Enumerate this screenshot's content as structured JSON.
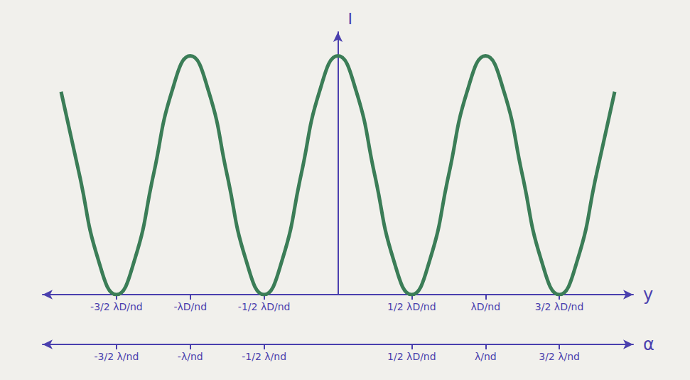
{
  "chart_data": {
    "type": "line",
    "xlabel": "y",
    "x2label": "α",
    "ylabel": "I",
    "x": [
      -1.875,
      -1.75,
      -1.625,
      -1.5,
      -1.375,
      -1.25,
      -1.125,
      -1,
      -0.875,
      -0.75,
      -0.625,
      -0.5,
      -0.375,
      -0.25,
      -0.125,
      0,
      0.125,
      0.25,
      0.375,
      0.5,
      0.625,
      0.75,
      0.875,
      1,
      1.125,
      1.25,
      1.375,
      1.5,
      1.625,
      1.75,
      1.875
    ],
    "values": [
      0.85,
      0.5,
      0.15,
      0,
      0.15,
      0.5,
      0.85,
      1,
      0.85,
      0.5,
      0.15,
      0,
      0.15,
      0.5,
      0.85,
      1,
      0.85,
      0.5,
      0.15,
      0,
      0.15,
      0.5,
      0.85,
      1,
      0.85,
      0.5,
      0.15,
      0,
      0.15,
      0.5,
      0.85
    ],
    "color": "#3b7d57",
    "xlim": [
      -2,
      2
    ],
    "xticks": [
      {
        "value": -1.5,
        "label": "-3/2 λD/nd"
      },
      {
        "value": -1,
        "label": "-λD/nd"
      },
      {
        "value": -0.5,
        "label": "-1/2 λD/nd"
      },
      {
        "value": 0.5,
        "label": "1/2 λD/nd"
      },
      {
        "value": 1,
        "label": "λD/nd"
      },
      {
        "value": 1.5,
        "label": "3/2 λD/nd"
      }
    ],
    "x2lim": [
      -2,
      2
    ],
    "x2ticks": [
      {
        "value": -1.5,
        "label": "-3/2 λ/nd"
      },
      {
        "value": -1,
        "label": "-λ/nd"
      },
      {
        "value": -0.5,
        "label": "-1/2 λ/nd"
      },
      {
        "value": 0.5,
        "label": "1/2 λD/nd"
      },
      {
        "value": 1,
        "label": "λ/nd"
      },
      {
        "value": 1.5,
        "label": "3/2 λ/nd"
      }
    ],
    "ylim": [
      0,
      1.1
    ],
    "yticks": [],
    "grid": false,
    "tick_labels": "x"
  }
}
